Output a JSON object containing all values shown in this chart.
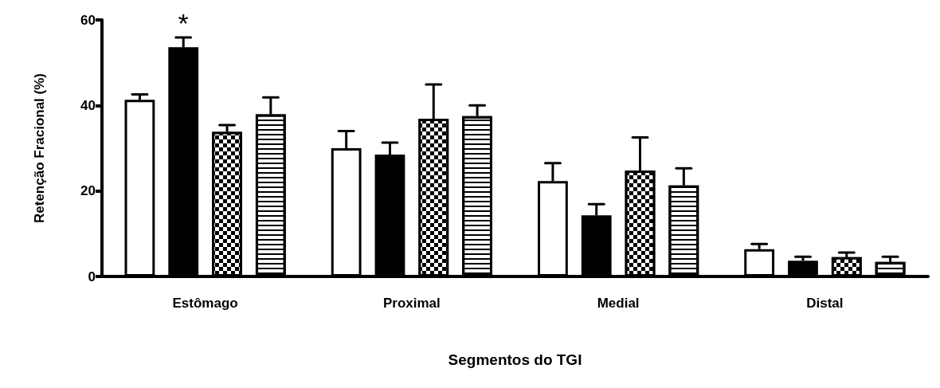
{
  "chart_data": {
    "type": "bar",
    "xlabel": "Segmentos do TGI",
    "ylabel": "Retenção Fracional (%)",
    "categories": [
      "Estômago",
      "Proximal",
      "Medial",
      "Distal"
    ],
    "series": [
      {
        "color": "#ffffff",
        "values": [
          41.3,
          30.0,
          22.3,
          6.4
        ],
        "errors": [
          [
            41.3,
            42.6
          ],
          [
            30.0,
            34.0
          ],
          [
            22.3,
            26.5
          ],
          [
            6.4,
            7.6
          ]
        ]
      },
      {
        "color": "#000000",
        "values": [
          53.6,
          28.5,
          14.3,
          3.7
        ],
        "errors": [
          [
            53.6,
            55.9
          ],
          [
            28.5,
            31.3
          ],
          [
            14.3,
            16.9
          ],
          [
            3.7,
            4.6
          ]
        ]
      },
      {
        "color": "#000000",
        "values": [
          33.8,
          36.9,
          24.8,
          4.5
        ],
        "errors": [
          [
            33.8,
            35.4
          ],
          [
            36.9,
            44.9
          ],
          [
            24.8,
            32.5
          ],
          [
            4.5,
            5.6
          ]
        ]
      },
      {
        "color": "#ffffff",
        "values": [
          37.9,
          37.5,
          21.3,
          3.4
        ],
        "errors": [
          [
            37.9,
            41.9
          ],
          [
            37.5,
            40.0
          ],
          [
            21.3,
            25.3
          ],
          [
            3.4,
            4.6
          ]
        ]
      }
    ],
    "ylim": [
      0,
      60
    ],
    "yticks": [
      0,
      20,
      40,
      60
    ],
    "grid": false,
    "annotations": [
      "*"
    ]
  }
}
